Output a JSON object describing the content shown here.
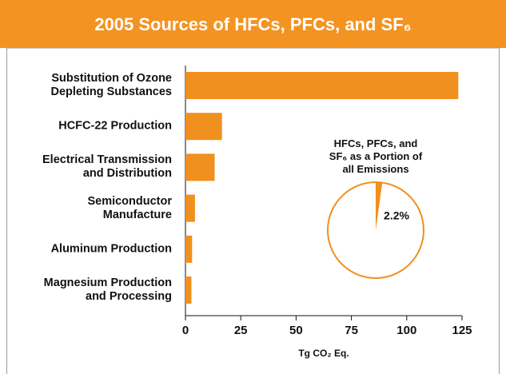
{
  "chart_data": [
    {
      "type": "bar",
      "orientation": "horizontal",
      "title": "2005 Sources of HFCs, PFCs, and SF₆",
      "categories": [
        "Substitution of Ozone\nDepleting Substances",
        "HCFC-22 Production",
        "Electrical Transmission\nand Distribution",
        "Semiconductor\nManufacture",
        "Aluminum Production",
        "Magnesium Production\nand Processing"
      ],
      "values": [
        123.3,
        16.5,
        13.2,
        4.3,
        3.0,
        2.7
      ],
      "color": "#f0901e",
      "xlim": [
        0,
        125
      ],
      "xticks": [
        0,
        25,
        50,
        75,
        100,
        125
      ],
      "xlabel": "Tg CO₂ Eq."
    },
    {
      "type": "pie",
      "title": "HFCs, PFCs, and\nSF₆ as a Portion of\nall Emissions",
      "values": [
        2.2
      ],
      "value_labels": [
        "2.2%"
      ],
      "color": "#f0901e"
    }
  ]
}
